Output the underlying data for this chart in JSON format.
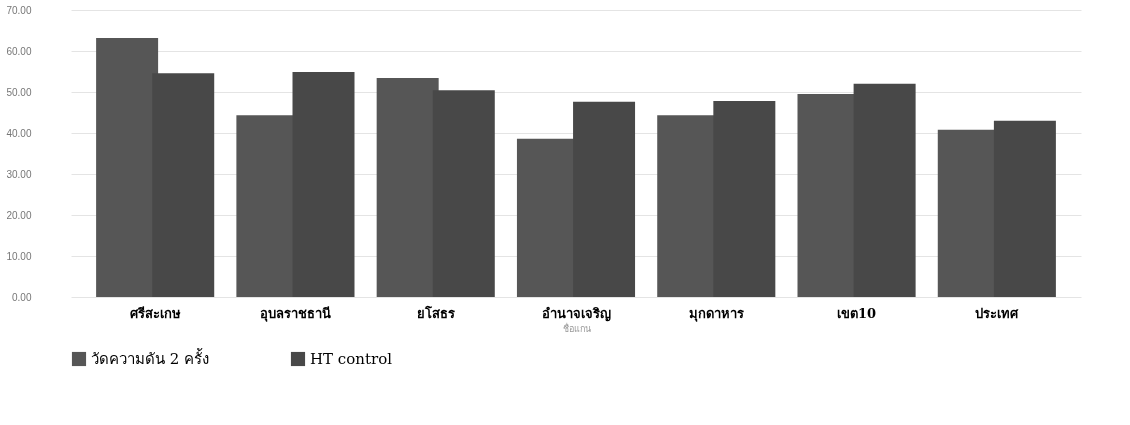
{
  "chart_data": {
    "type": "bar",
    "xlabel": "ชื่อแกน",
    "categories": [
      "ศรีสะเกษ",
      "อุบลราชธานี",
      "ยโสธร",
      "อำนาจเจริญ",
      "มุกดาหาร",
      "เขต10",
      "ประเทศ"
    ],
    "series": [
      {
        "name": "วัดความดัน 2 ครั้ง",
        "color": "#565656",
        "values": [
          63.2,
          44.3,
          53.4,
          38.6,
          44.3,
          49.5,
          40.8
        ]
      },
      {
        "name": "HT control",
        "color": "#484848",
        "values": [
          54.6,
          54.9,
          50.4,
          47.6,
          47.8,
          52.0,
          43.0
        ]
      }
    ],
    "ylim": [
      0,
      70
    ],
    "yticks": [
      {
        "value": 0,
        "label": "0.00"
      },
      {
        "value": 10,
        "label": "10.00"
      },
      {
        "value": 20,
        "label": "20.00"
      },
      {
        "value": 30,
        "label": "30.00"
      },
      {
        "value": 40,
        "label": "40.00"
      },
      {
        "value": 50,
        "label": "50.00"
      },
      {
        "value": 60,
        "label": "60.00"
      },
      {
        "value": 70,
        "label": "70.00"
      }
    ],
    "grid": "y",
    "legend": "bottom"
  }
}
